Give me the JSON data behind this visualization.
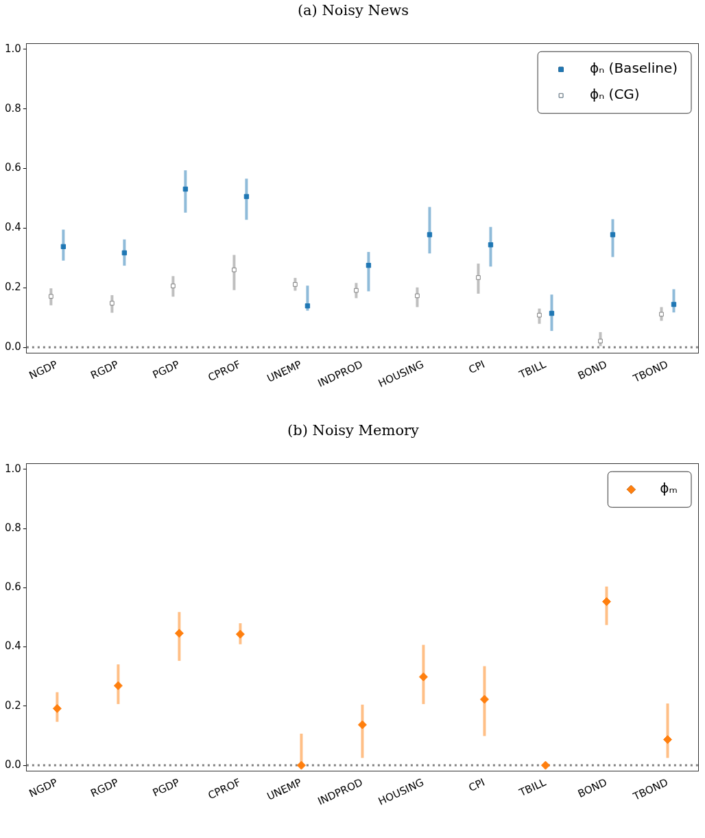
{
  "chart_data": [
    {
      "type": "scatter",
      "title": "(a) Noisy News",
      "categories": [
        "NGDP",
        "RGDP",
        "PGDP",
        "CPROF",
        "UNEMP",
        "INDPROD",
        "HOUSING",
        "CPI",
        "TBILL",
        "BOND",
        "TBOND"
      ],
      "series": [
        {
          "name": "ϕₙ (Baseline)",
          "color": "#1f77b4",
          "marker": "square",
          "values": [
            0.338,
            0.317,
            0.531,
            0.506,
            0.139,
            0.275,
            0.378,
            0.344,
            0.114,
            0.378,
            0.144
          ],
          "errors": [
            [
              0.291,
              0.395
            ],
            [
              0.274,
              0.362
            ],
            [
              0.452,
              0.594
            ],
            [
              0.428,
              0.566
            ],
            [
              0.123,
              0.207
            ],
            [
              0.188,
              0.32
            ],
            [
              0.315,
              0.471
            ],
            [
              0.271,
              0.404
            ],
            [
              0.055,
              0.177
            ],
            [
              0.303,
              0.43
            ],
            [
              0.117,
              0.195
            ]
          ]
        },
        {
          "name": "ϕₙ (CG)",
          "color": "#808080",
          "marker": "square",
          "values": [
            0.171,
            0.148,
            0.206,
            0.26,
            0.211,
            0.191,
            0.173,
            0.234,
            0.108,
            0.021,
            0.111
          ],
          "errors": [
            [
              0.141,
              0.198
            ],
            [
              0.116,
              0.175
            ],
            [
              0.17,
              0.239
            ],
            [
              0.192,
              0.31
            ],
            [
              0.19,
              0.233
            ],
            [
              0.165,
              0.216
            ],
            [
              0.135,
              0.201
            ],
            [
              0.18,
              0.281
            ],
            [
              0.079,
              0.13
            ],
            [
              0.004,
              0.051
            ],
            [
              0.089,
              0.135
            ]
          ]
        }
      ],
      "ylim": [
        -0.02,
        1.02
      ],
      "yticks": [
        {
          "value": 0,
          "label": "0.0"
        },
        {
          "value": 0.2,
          "label": "0.2"
        },
        {
          "value": 0.4,
          "label": "0.4"
        },
        {
          "value": 0.6,
          "label": "0.6"
        },
        {
          "value": 0.8,
          "label": "0.8"
        },
        {
          "value": 1,
          "label": "1.0"
        }
      ],
      "legend": "top right",
      "ref_lines": [
        {
          "axis": "y",
          "value": 0,
          "color": "#808080",
          "line_style": "dotted"
        }
      ]
    },
    {
      "type": "scatter",
      "title": "(b) Noisy Memory",
      "categories": [
        "NGDP",
        "RGDP",
        "PGDP",
        "CPROF",
        "UNEMP",
        "INDPROD",
        "HOUSING",
        "CPI",
        "TBILL",
        "BOND",
        "TBOND"
      ],
      "series": [
        {
          "name": "ϕₘ",
          "color": "#ff7f0e",
          "marker": "diamond",
          "values": [
            0.192,
            0.269,
            0.446,
            0.443,
            0,
            0.137,
            0.299,
            0.223,
            0,
            0.553,
            0.087
          ],
          "errors": [
            [
              0.147,
              0.247
            ],
            [
              0.207,
              0.341
            ],
            [
              0.353,
              0.518
            ],
            [
              0.409,
              0.48
            ],
            [
              0,
              0.107
            ],
            [
              0.025,
              0.205
            ],
            [
              0.207,
              0.407
            ],
            [
              0.099,
              0.335
            ],
            null,
            [
              0.474,
              0.604
            ],
            [
              0.025,
              0.209
            ]
          ]
        }
      ],
      "ylim": [
        -0.02,
        1.02
      ],
      "yticks": [
        {
          "value": 0,
          "label": "0.0"
        },
        {
          "value": 0.2,
          "label": "0.2"
        },
        {
          "value": 0.4,
          "label": "0.4"
        },
        {
          "value": 0.6,
          "label": "0.6"
        },
        {
          "value": 0.8,
          "label": "0.8"
        },
        {
          "value": 1,
          "label": "1.0"
        }
      ],
      "legend": "top right",
      "ref_lines": [
        {
          "axis": "y",
          "value": 0,
          "color": "#808080",
          "line_style": "dotted"
        }
      ]
    }
  ]
}
